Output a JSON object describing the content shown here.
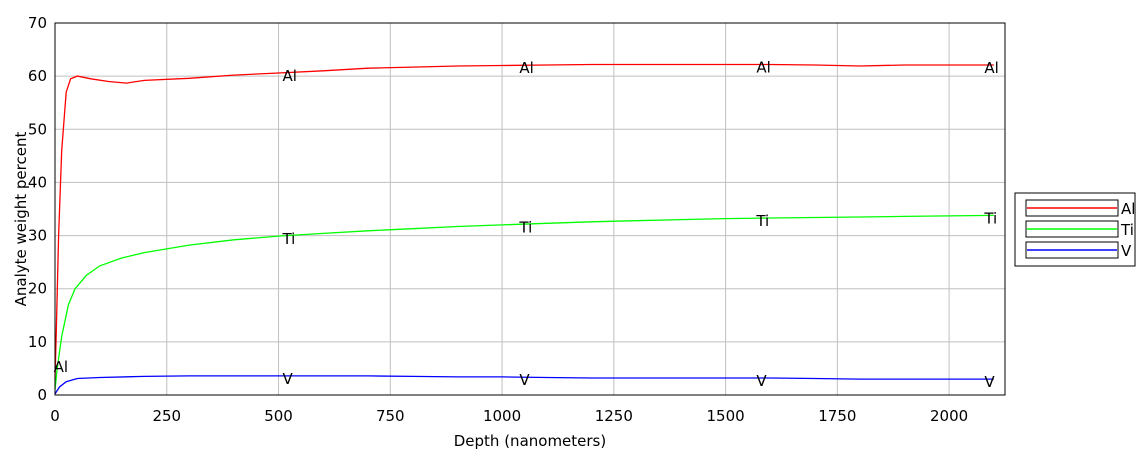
{
  "chart_data": {
    "type": "line",
    "title": "",
    "xlabel": "Depth (nanometers)",
    "ylabel": "Analyte weight percent",
    "xlim": [
      0,
      2125
    ],
    "ylim": [
      0,
      70
    ],
    "x_ticks": [
      0,
      250,
      500,
      750,
      1000,
      1250,
      1500,
      1750,
      2000
    ],
    "y_ticks": [
      0,
      10,
      20,
      30,
      40,
      50,
      60,
      70
    ],
    "grid": true,
    "legend_position": "right",
    "series": [
      {
        "name": "Al",
        "color": "#ff0000",
        "points": [
          [
            0,
            3
          ],
          [
            3,
            12
          ],
          [
            8,
            30
          ],
          [
            15,
            46
          ],
          [
            25,
            57
          ],
          [
            35,
            59.5
          ],
          [
            50,
            60
          ],
          [
            80,
            59.5
          ],
          [
            120,
            59
          ],
          [
            160,
            58.7
          ],
          [
            200,
            59.2
          ],
          [
            300,
            59.6
          ],
          [
            400,
            60.2
          ],
          [
            500,
            60.6
          ],
          [
            600,
            61
          ],
          [
            700,
            61.5
          ],
          [
            800,
            61.7
          ],
          [
            900,
            61.9
          ],
          [
            1000,
            62
          ],
          [
            1100,
            62.1
          ],
          [
            1200,
            62.2
          ],
          [
            1400,
            62.2
          ],
          [
            1600,
            62.2
          ],
          [
            1700,
            62.1
          ],
          [
            1800,
            61.9
          ],
          [
            1900,
            62.1
          ],
          [
            2000,
            62.1
          ],
          [
            2100,
            62.1
          ]
        ],
        "labels": [
          {
            "x": 520,
            "y": 60.6,
            "text": "Al"
          },
          {
            "x": 1050,
            "y": 62.1,
            "text": "Al"
          },
          {
            "x": 1580,
            "y": 62.2,
            "text": "Al"
          },
          {
            "x": 2090,
            "y": 62.1,
            "text": "Al"
          },
          {
            "x": 8,
            "y": 5.8,
            "text": "Al"
          }
        ]
      },
      {
        "name": "Ti",
        "color": "#00ff00",
        "points": [
          [
            0,
            1
          ],
          [
            5,
            5
          ],
          [
            15,
            11
          ],
          [
            30,
            17
          ],
          [
            45,
            20
          ],
          [
            70,
            22.5
          ],
          [
            100,
            24.3
          ],
          [
            150,
            25.8
          ],
          [
            200,
            26.8
          ],
          [
            300,
            28.2
          ],
          [
            400,
            29.2
          ],
          [
            500,
            29.9
          ],
          [
            600,
            30.4
          ],
          [
            700,
            30.9
          ],
          [
            800,
            31.3
          ],
          [
            900,
            31.7
          ],
          [
            1000,
            32
          ],
          [
            1100,
            32.3
          ],
          [
            1200,
            32.6
          ],
          [
            1300,
            32.8
          ],
          [
            1400,
            33
          ],
          [
            1500,
            33.2
          ],
          [
            1600,
            33.3
          ],
          [
            1700,
            33.4
          ],
          [
            1800,
            33.5
          ],
          [
            1900,
            33.6
          ],
          [
            2000,
            33.7
          ],
          [
            2100,
            33.8
          ]
        ],
        "labels": [
          {
            "x": 520,
            "y": 29.9,
            "text": "Ti"
          },
          {
            "x": 1050,
            "y": 32.1,
            "text": "Ti"
          },
          {
            "x": 1580,
            "y": 33.3,
            "text": "Ti"
          },
          {
            "x": 2090,
            "y": 33.8,
            "text": "Ti"
          }
        ]
      },
      {
        "name": "V",
        "color": "#0000ff",
        "points": [
          [
            0,
            0.2
          ],
          [
            10,
            1.5
          ],
          [
            25,
            2.5
          ],
          [
            50,
            3.1
          ],
          [
            100,
            3.3
          ],
          [
            200,
            3.5
          ],
          [
            300,
            3.6
          ],
          [
            400,
            3.6
          ],
          [
            500,
            3.6
          ],
          [
            600,
            3.6
          ],
          [
            700,
            3.6
          ],
          [
            800,
            3.5
          ],
          [
            900,
            3.4
          ],
          [
            1000,
            3.4
          ],
          [
            1100,
            3.3
          ],
          [
            1200,
            3.2
          ],
          [
            1400,
            3.2
          ],
          [
            1600,
            3.2
          ],
          [
            1700,
            3.1
          ],
          [
            1800,
            3
          ],
          [
            1900,
            3
          ],
          [
            2000,
            3
          ],
          [
            2100,
            3
          ]
        ],
        "labels": [
          {
            "x": 520,
            "y": 3.6,
            "text": "V"
          },
          {
            "x": 1050,
            "y": 3.4,
            "text": "V"
          },
          {
            "x": 1580,
            "y": 3.2,
            "text": "V"
          },
          {
            "x": 2090,
            "y": 3.0,
            "text": "V"
          }
        ]
      }
    ]
  }
}
